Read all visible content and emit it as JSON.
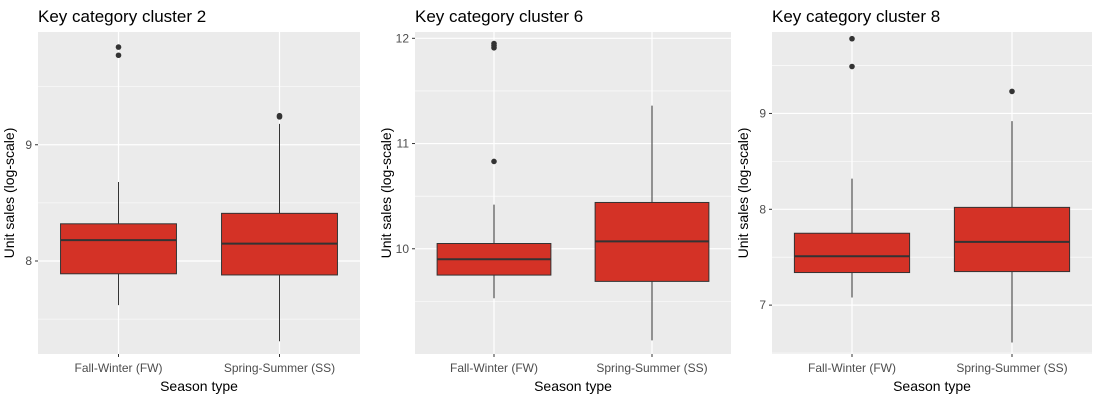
{
  "chart_data": [
    {
      "type": "box",
      "title": "Key category cluster 2",
      "xlabel": "Season type",
      "ylabel": "Unit sales (log-scale)",
      "categories": [
        "Fall-Winter (FW)",
        "Spring-Summer (SS)"
      ],
      "ylim": [
        7.2,
        9.97
      ],
      "yticks": [
        8,
        9
      ],
      "grid": true,
      "fill_color": "#d43226",
      "panel_color": "#ebebeb",
      "boxes": [
        {
          "category": "Fall-Winter (FW)",
          "whisker_low": 7.62,
          "q1": 7.89,
          "median": 8.18,
          "q3": 8.32,
          "whisker_high": 8.68,
          "outliers": [
            9.77,
            9.84
          ]
        },
        {
          "category": "Spring-Summer (SS)",
          "whisker_low": 7.31,
          "q1": 7.88,
          "median": 8.15,
          "q3": 8.41,
          "whisker_high": 9.18,
          "outliers": [
            9.24,
            9.25
          ]
        }
      ]
    },
    {
      "type": "box",
      "title": "Key category cluster 6",
      "xlabel": "Season type",
      "ylabel": "Unit sales (log-scale)",
      "categories": [
        "Fall-Winter (FW)",
        "Spring-Summer (SS)"
      ],
      "ylim": [
        9.0,
        12.06
      ],
      "yticks": [
        10,
        11,
        12
      ],
      "grid": true,
      "fill_color": "#d43226",
      "panel_color": "#ebebeb",
      "boxes": [
        {
          "category": "Fall-Winter (FW)",
          "whisker_low": 9.53,
          "q1": 9.75,
          "median": 9.9,
          "q3": 10.05,
          "whisker_high": 10.42,
          "outliers": [
            10.83,
            11.91,
            11.93,
            11.95
          ]
        },
        {
          "category": "Spring-Summer (SS)",
          "whisker_low": 9.13,
          "q1": 9.69,
          "median": 10.07,
          "q3": 10.44,
          "whisker_high": 11.36,
          "outliers": []
        }
      ]
    },
    {
      "type": "box",
      "title": "Key category cluster 8",
      "xlabel": "Season type",
      "ylabel": "Unit sales (log-scale)",
      "categories": [
        "Fall-Winter (FW)",
        "Spring-Summer (SS)"
      ],
      "ylim": [
        6.49,
        9.85
      ],
      "yticks": [
        7,
        8,
        9
      ],
      "grid": true,
      "fill_color": "#d43226",
      "panel_color": "#ebebeb",
      "boxes": [
        {
          "category": "Fall-Winter (FW)",
          "whisker_low": 7.08,
          "q1": 7.34,
          "median": 7.51,
          "q3": 7.75,
          "whisker_high": 8.32,
          "outliers": [
            9.49,
            9.78
          ]
        },
        {
          "category": "Spring-Summer (SS)",
          "whisker_low": 6.61,
          "q1": 7.35,
          "median": 7.66,
          "q3": 8.02,
          "whisker_high": 8.92,
          "outliers": [
            9.23
          ]
        }
      ]
    }
  ]
}
